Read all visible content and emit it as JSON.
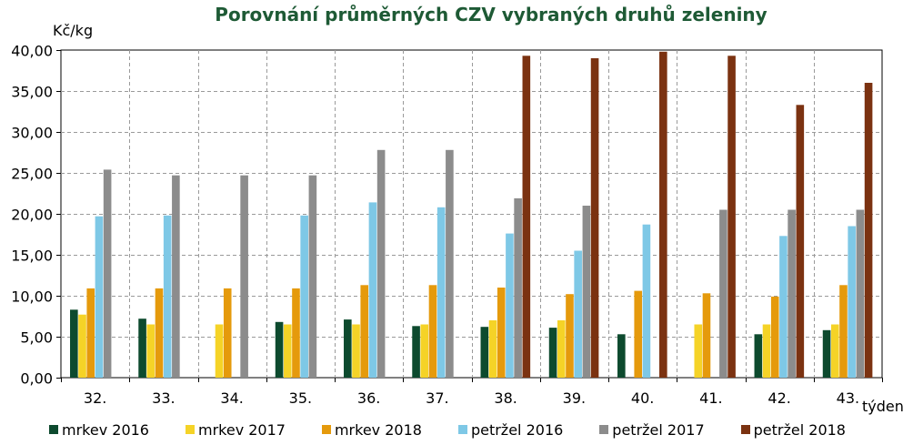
{
  "chart_data": {
    "type": "bar",
    "title": "Porovnání průměrných CZV vybraných druhů zeleniny",
    "ylabel": "Kč/kg",
    "xlabel": "týden",
    "ylim": [
      0,
      40
    ],
    "yticks": [
      "0,00",
      "5,00",
      "10,00",
      "15,00",
      "20,00",
      "25,00",
      "30,00",
      "35,00",
      "40,00"
    ],
    "categories": [
      "32.",
      "33.",
      "34.",
      "35.",
      "36.",
      "37.",
      "38.",
      "39.",
      "40.",
      "41.",
      "42.",
      "43."
    ],
    "grid": true,
    "legend_position": "bottom",
    "series": [
      {
        "name": "mrkev 2016",
        "color": "#0d4a2e",
        "values": [
          8.3,
          7.2,
          null,
          6.8,
          7.1,
          6.3,
          6.2,
          6.1,
          5.3,
          null,
          5.3,
          5.8
        ]
      },
      {
        "name": "mrkev 2017",
        "color": "#f5d327",
        "values": [
          7.7,
          6.5,
          6.5,
          6.5,
          6.5,
          6.5,
          7.0,
          7.0,
          null,
          6.5,
          6.5,
          6.5
        ]
      },
      {
        "name": "mrkev 2018",
        "color": "#e59a0c",
        "values": [
          10.9,
          10.9,
          10.9,
          10.9,
          11.3,
          11.3,
          11.0,
          10.2,
          10.6,
          10.3,
          9.9,
          11.3
        ]
      },
      {
        "name": "petržel 2016",
        "color": "#7ec8e6",
        "values": [
          19.7,
          19.8,
          null,
          19.8,
          21.4,
          20.8,
          17.6,
          15.5,
          18.7,
          null,
          17.3,
          18.5
        ]
      },
      {
        "name": "petržel 2017",
        "color": "#8c8c8c",
        "values": [
          25.4,
          24.7,
          24.7,
          24.7,
          27.8,
          27.8,
          21.9,
          21.0,
          null,
          20.5,
          20.5,
          20.5
        ]
      },
      {
        "name": "petržel 2018",
        "color": "#7b3211",
        "values": [
          null,
          null,
          null,
          null,
          null,
          null,
          39.3,
          39.0,
          39.8,
          39.3,
          33.3,
          36.0
        ]
      }
    ]
  }
}
